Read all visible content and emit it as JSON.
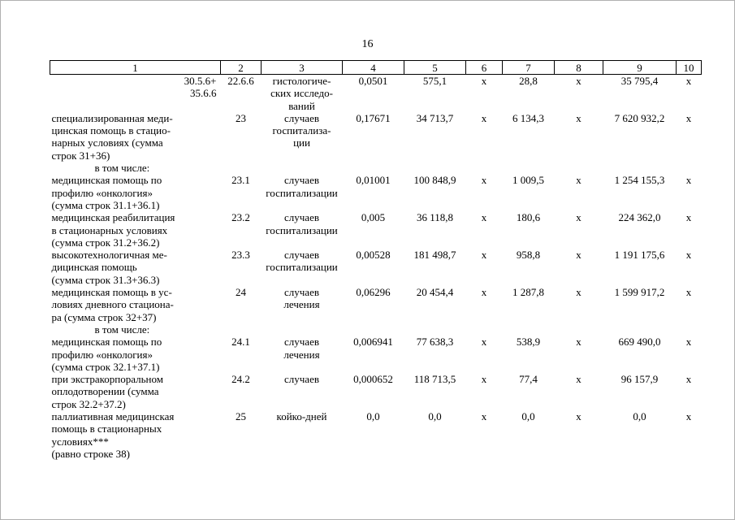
{
  "page": {
    "number": "16"
  },
  "table": {
    "column_numbers": [
      "1",
      "2",
      "3",
      "4",
      "5",
      "6",
      "7",
      "8",
      "9",
      "10"
    ],
    "rows": [
      {
        "c1": "30.5.6+\n35.6.6",
        "c1_class": "right",
        "c2": "22.6.6",
        "c3": "гистологиче-\nских исследо-\nваний",
        "c4": "0,0501",
        "c5": "575,1",
        "c6": "х",
        "c7": "28,8",
        "c8": "х",
        "c9": "35 795,4",
        "c10": "х"
      },
      {
        "c1": "специализированная меди-\nцинская помощь в стацио-\nнарных условиях (сумма\nстрок 31+36)",
        "c2": "23",
        "c3": "случаев\nгоспитализа-\nции",
        "c4": "0,17671",
        "c5": "34 713,7",
        "c6": "х",
        "c7": "6 134,3",
        "c8": "х",
        "c9": "7 620 932,2",
        "c10": "х"
      },
      {
        "c1": "в том числе:",
        "c1_class": "indent",
        "c2": "",
        "c3": "",
        "c4": "",
        "c5": "",
        "c6": "",
        "c7": "",
        "c8": "",
        "c9": "",
        "c10": ""
      },
      {
        "c1": "медицинская помощь по\nпрофилю «онкология»\n(сумма строк 31.1+36.1)",
        "c2": "23.1",
        "c3": "случаев\nгоспитализации",
        "c4": "0,01001",
        "c5": "100 848,9",
        "c6": "х",
        "c7": "1 009,5",
        "c8": "х",
        "c9": "1 254 155,3",
        "c10": "х"
      },
      {
        "c1": "медицинская реабилитация\nв стационарных условиях\n(сумма строк 31.2+36.2)",
        "c2": "23.2",
        "c3": "случаев\nгоспитализации",
        "c4": "0,005",
        "c5": "36 118,8",
        "c6": "х",
        "c7": "180,6",
        "c8": "х",
        "c9": "224 362,0",
        "c10": "х"
      },
      {
        "c1": "высокотехнологичная ме-\nдицинская помощь\n(сумма строк 31.3+36.3)",
        "c2": "23.3",
        "c3": "случаев\nгоспитализации",
        "c4": "0,00528",
        "c5": "181 498,7",
        "c6": "х",
        "c7": "958,8",
        "c8": "х",
        "c9": "1 191 175,6",
        "c10": "х"
      },
      {
        "c1": "медицинская помощь в ус-\nловиях дневного стациона-\nра (сумма строк 32+37)",
        "c2": "24",
        "c3": "случаев\nлечения",
        "c4": "0,06296",
        "c5": "20 454,4",
        "c6": "х",
        "c7": "1 287,8",
        "c8": "х",
        "c9": "1 599 917,2",
        "c10": "х"
      },
      {
        "c1": "в том числе:",
        "c1_class": "indent",
        "c2": "",
        "c3": "",
        "c4": "",
        "c5": "",
        "c6": "",
        "c7": "",
        "c8": "",
        "c9": "",
        "c10": ""
      },
      {
        "c1": "медицинская помощь по\nпрофилю «онкология»\n(сумма строк 32.1+37.1)",
        "c2": "24.1",
        "c3": "случаев\nлечения",
        "c4": "0,006941",
        "c5": "77 638,3",
        "c6": "х",
        "c7": "538,9",
        "c8": "х",
        "c9": "669 490,0",
        "c10": "х"
      },
      {
        "c1": "при экстракорпоральном\nоплодотворении (сумма\nстрок 32.2+37.2)",
        "c2": "24.2",
        "c3": "случаев",
        "c4": "0,000652",
        "c5": "118 713,5",
        "c6": "х",
        "c7": "77,4",
        "c8": "х",
        "c9": "96 157,9",
        "c10": "х"
      },
      {
        "c1": "паллиативная медицинская\nпомощь в стационарных\nусловиях***\n(равно строке 38)",
        "c2": "25",
        "c3": "койко-дней",
        "c4": "0,0",
        "c5": "0,0",
        "c6": "х",
        "c7": "0,0",
        "c8": "х",
        "c9": "0,0",
        "c10": "х"
      }
    ]
  }
}
